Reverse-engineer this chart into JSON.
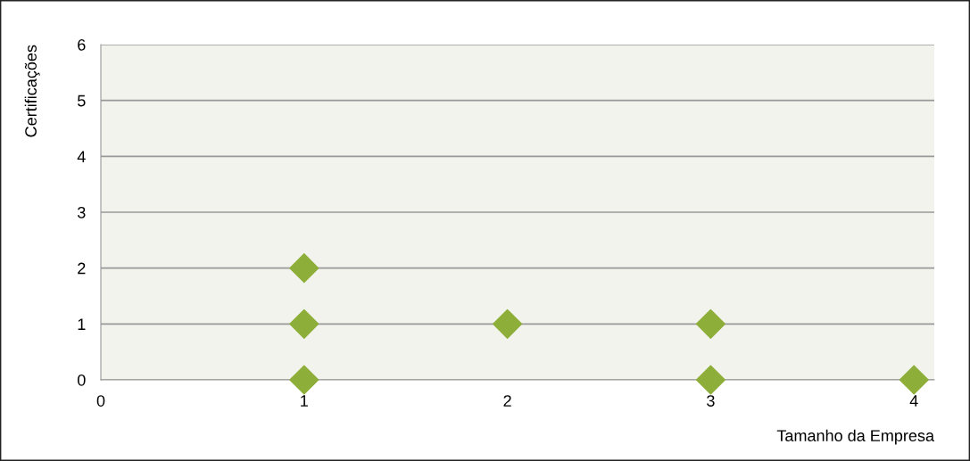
{
  "chart_data": {
    "type": "scatter",
    "xlabel": "Tamanho da Empresa",
    "ylabel": "Certificações",
    "x": [
      1,
      1,
      1,
      2,
      3,
      3,
      4
    ],
    "series": [
      {
        "color": "#8eae3a",
        "values": [
          2,
          1,
          0,
          1,
          1,
          0,
          0
        ]
      }
    ],
    "xlim": [
      0,
      4.1
    ],
    "xticks": [
      0,
      1,
      2,
      3,
      4
    ],
    "ylim": [
      0,
      6
    ],
    "yticks": [
      0,
      1,
      2,
      3,
      4,
      5,
      6
    ],
    "grid": "y",
    "marker": "diamond",
    "legend": false
  }
}
